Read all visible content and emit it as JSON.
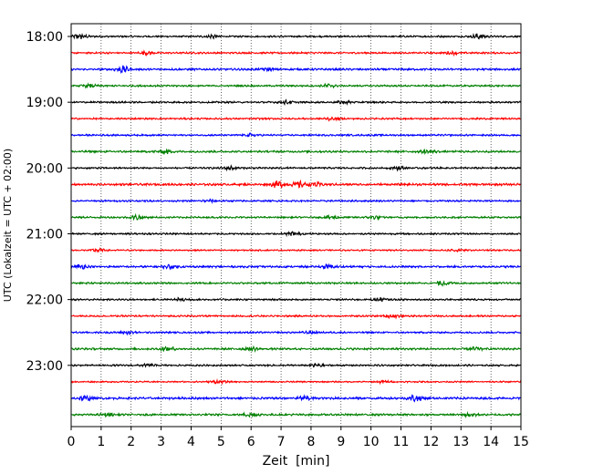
{
  "chart_data": {
    "type": "line",
    "title": "",
    "xlabel": "Zeit  [min]",
    "ylabel": "UTC (Lokalzeit = UTC + 02:00)",
    "xlim": [
      0,
      15
    ],
    "x_ticks": [
      0,
      1,
      2,
      3,
      4,
      5,
      6,
      7,
      8,
      9,
      10,
      11,
      12,
      13,
      14,
      15
    ],
    "y_ticks": [
      "18:00",
      "19:00",
      "20:00",
      "21:00",
      "22:00",
      "23:00"
    ],
    "trace_start_times": [
      "18:00",
      "18:15",
      "18:30",
      "18:45",
      "19:00",
      "19:15",
      "19:30",
      "19:45",
      "20:00",
      "20:15",
      "20:30",
      "20:45",
      "21:00",
      "21:15",
      "21:30",
      "21:45",
      "22:00",
      "22:15",
      "22:30",
      "22:45",
      "23:00",
      "23:15",
      "23:30",
      "23:45"
    ],
    "trace_minutes": 15,
    "vertical_gridlines": "dotted, every minute",
    "colors": [
      "#000000",
      "#ff0000",
      "#0000ff",
      "#008000"
    ],
    "trace_activity": [
      {
        "base": 0.35,
        "bursts": [
          [
            0.3,
            1.0
          ],
          [
            4.7,
            0.7
          ],
          [
            13.6,
            1.0
          ]
        ]
      },
      {
        "base": 0.35,
        "bursts": [
          [
            2.5,
            0.6
          ],
          [
            12.7,
            0.6
          ]
        ]
      },
      {
        "base": 0.4,
        "bursts": [
          [
            1.7,
            1.2
          ],
          [
            6.5,
            0.6
          ]
        ]
      },
      {
        "base": 0.35,
        "bursts": [
          [
            0.6,
            0.6
          ],
          [
            8.6,
            0.6
          ]
        ]
      },
      {
        "base": 0.35,
        "bursts": [
          [
            7.2,
            0.6
          ],
          [
            9.1,
            0.5
          ]
        ]
      },
      {
        "base": 0.35,
        "bursts": [
          [
            8.7,
            0.6
          ]
        ]
      },
      {
        "base": 0.35,
        "bursts": [
          [
            6.0,
            0.5
          ]
        ]
      },
      {
        "base": 0.4,
        "bursts": [
          [
            3.1,
            0.9
          ],
          [
            11.9,
            0.7
          ]
        ]
      },
      {
        "base": 0.35,
        "bursts": [
          [
            5.3,
            0.8
          ],
          [
            10.9,
            0.6
          ]
        ]
      },
      {
        "base": 0.45,
        "bursts": [
          [
            6.9,
            1.2
          ],
          [
            7.6,
            1.0
          ],
          [
            8.1,
            0.8
          ]
        ]
      },
      {
        "base": 0.35,
        "bursts": [
          [
            4.6,
            0.6
          ]
        ]
      },
      {
        "base": 0.35,
        "bursts": [
          [
            2.2,
            0.8
          ],
          [
            8.7,
            0.8
          ],
          [
            10.1,
            0.6
          ]
        ]
      },
      {
        "base": 0.35,
        "bursts": [
          [
            7.4,
            0.8
          ]
        ]
      },
      {
        "base": 0.3,
        "bursts": [
          [
            0.9,
            0.6
          ],
          [
            12.8,
            0.5
          ]
        ]
      },
      {
        "base": 0.4,
        "bursts": [
          [
            0.3,
            0.7
          ],
          [
            3.3,
            0.7
          ],
          [
            8.6,
            0.8
          ]
        ]
      },
      {
        "base": 0.35,
        "bursts": [
          [
            12.4,
            0.8
          ]
        ]
      },
      {
        "base": 0.35,
        "bursts": [
          [
            3.7,
            0.6
          ],
          [
            10.3,
            0.6
          ]
        ]
      },
      {
        "base": 0.35,
        "bursts": [
          [
            10.7,
            0.7
          ]
        ]
      },
      {
        "base": 0.35,
        "bursts": [
          [
            1.9,
            0.6
          ],
          [
            8.0,
            0.5
          ]
        ]
      },
      {
        "base": 0.4,
        "bursts": [
          [
            3.2,
            0.9
          ],
          [
            6.0,
            0.7
          ],
          [
            13.5,
            0.6
          ]
        ]
      },
      {
        "base": 0.35,
        "bursts": [
          [
            2.6,
            0.5
          ],
          [
            8.2,
            0.7
          ]
        ]
      },
      {
        "base": 0.3,
        "bursts": [
          [
            4.9,
            0.6
          ],
          [
            10.4,
            0.5
          ]
        ]
      },
      {
        "base": 0.45,
        "bursts": [
          [
            0.5,
            0.9
          ],
          [
            7.8,
            0.8
          ],
          [
            11.5,
            1.3
          ]
        ]
      },
      {
        "base": 0.4,
        "bursts": [
          [
            1.2,
            0.6
          ],
          [
            6.0,
            0.8
          ],
          [
            13.3,
            0.7
          ]
        ]
      }
    ]
  }
}
